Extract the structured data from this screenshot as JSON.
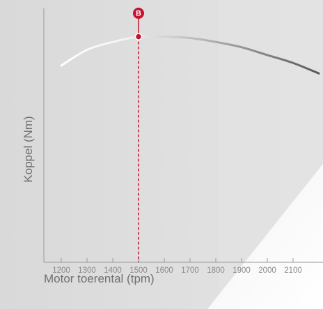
{
  "chart_data": {
    "type": "line",
    "xlabel": "Motor toerental (tpm)",
    "ylabel": "Koppel (Nm)",
    "x_ticks": [
      1200,
      1300,
      1400,
      1500,
      1600,
      1700,
      1800,
      1900,
      2000,
      2100
    ],
    "xlim": [
      1200,
      2200
    ],
    "ylim": [
      0,
      100
    ],
    "grid": false,
    "series": [
      {
        "x": [
          1200,
          1300,
          1400,
          1500,
          1600,
          1700,
          1800,
          1900,
          2000,
          2100,
          2200
        ],
        "values": [
          75,
          81,
          84,
          86,
          86,
          85.5,
          84,
          82,
          79,
          76,
          72
        ]
      }
    ],
    "marker": {
      "label": "B",
      "x": 1500,
      "y": 86
    },
    "colors": {
      "curve_end": "#555555",
      "curve_start": "#ffffff",
      "marker": "#c4122f",
      "axis": "#9a9a9a"
    }
  }
}
